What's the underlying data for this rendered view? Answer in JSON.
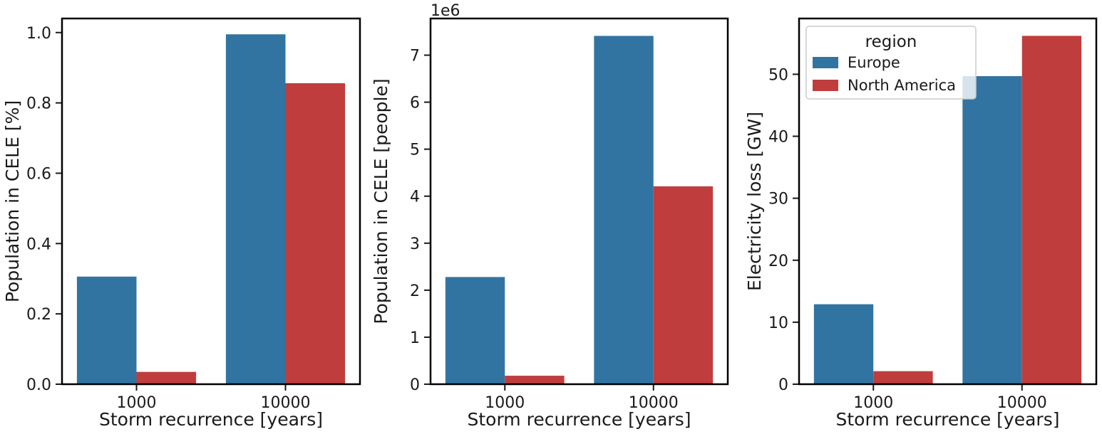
{
  "colors": {
    "Europe": "#3274a1",
    "North America": "#c03d3e"
  },
  "legend": {
    "title": "region",
    "placement": "upper-left",
    "panel": 2
  },
  "chart_data": [
    {
      "type": "bar",
      "categories": [
        "1000",
        "10000"
      ],
      "series": [
        {
          "name": "Europe",
          "values": [
            0.306,
            0.995
          ]
        },
        {
          "name": "North America",
          "values": [
            0.035,
            0.856
          ]
        }
      ],
      "xlabel": "Storm recurrence [years]",
      "ylabel": "Population in CELE [%]",
      "ylim": [
        0,
        1.04
      ],
      "yticks": [
        0.0,
        0.2,
        0.4,
        0.6,
        0.8,
        1.0
      ],
      "ytick_labels": [
        "0.0",
        "0.2",
        "0.4",
        "0.6",
        "0.8",
        "1.0"
      ],
      "offset_text": ""
    },
    {
      "type": "bar",
      "categories": [
        "1000",
        "10000"
      ],
      "series": [
        {
          "name": "Europe",
          "values": [
            2.28,
            7.41
          ]
        },
        {
          "name": "North America",
          "values": [
            0.18,
            4.21
          ]
        }
      ],
      "xlabel": "Storm recurrence [years]",
      "ylabel": "Population in CELE [people]",
      "ylim": [
        0,
        7.78
      ],
      "yticks": [
        0,
        1,
        2,
        3,
        4,
        5,
        6,
        7
      ],
      "ytick_labels": [
        "0",
        "1",
        "2",
        "3",
        "4",
        "5",
        "6",
        "7"
      ],
      "offset_text": "1e6"
    },
    {
      "type": "bar",
      "categories": [
        "1000",
        "10000"
      ],
      "series": [
        {
          "name": "Europe",
          "values": [
            12.9,
            49.7
          ]
        },
        {
          "name": "North America",
          "values": [
            2.1,
            56.2
          ]
        }
      ],
      "xlabel": "Storm recurrence [years]",
      "ylabel": "Electricity loss [GW]",
      "ylim": [
        0,
        59.0
      ],
      "yticks": [
        0,
        10,
        20,
        30,
        40,
        50
      ],
      "ytick_labels": [
        "0",
        "10",
        "20",
        "30",
        "40",
        "50"
      ],
      "offset_text": ""
    }
  ]
}
